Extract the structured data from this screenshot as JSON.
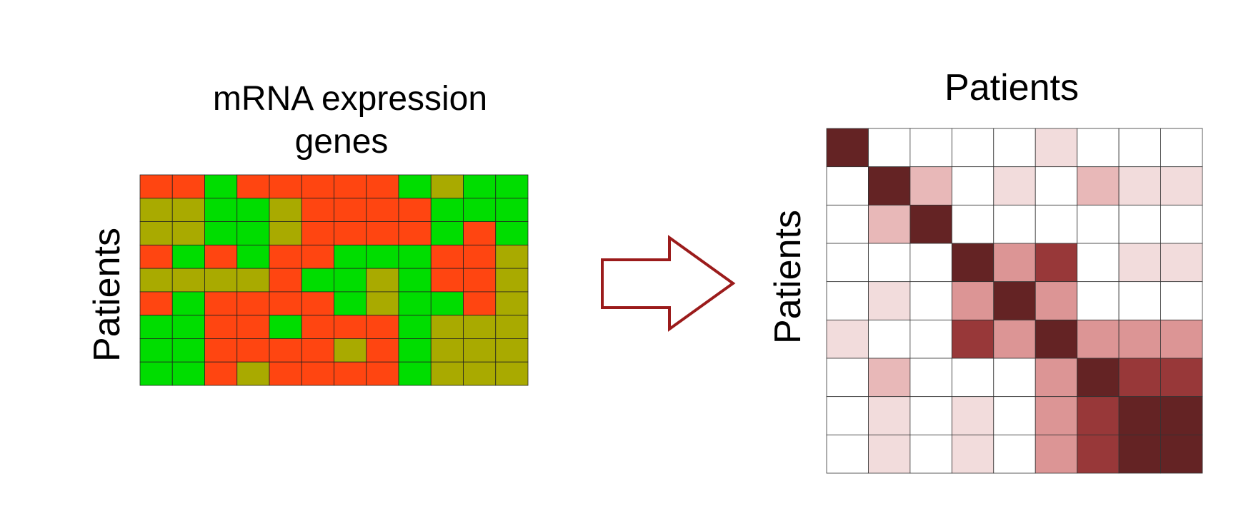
{
  "left_panel": {
    "title_line1": "mRNA expression",
    "title_line2": "genes",
    "row_label": "Patients",
    "legend_colors": {
      "r": "#ff4511",
      "g": "#00dd00",
      "o": "#a9aa00"
    },
    "matrix": [
      [
        "r",
        "r",
        "g",
        "r",
        "r",
        "r",
        "r",
        "r",
        "g",
        "o",
        "g",
        "g"
      ],
      [
        "o",
        "o",
        "g",
        "g",
        "o",
        "r",
        "r",
        "r",
        "r",
        "g",
        "g",
        "g"
      ],
      [
        "o",
        "o",
        "g",
        "g",
        "o",
        "r",
        "r",
        "r",
        "r",
        "g",
        "r",
        "g"
      ],
      [
        "r",
        "g",
        "r",
        "g",
        "r",
        "r",
        "g",
        "g",
        "g",
        "r",
        "r",
        "o"
      ],
      [
        "o",
        "o",
        "o",
        "o",
        "r",
        "g",
        "g",
        "o",
        "g",
        "r",
        "r",
        "o"
      ],
      [
        "r",
        "g",
        "r",
        "r",
        "r",
        "r",
        "g",
        "o",
        "g",
        "g",
        "r",
        "o"
      ],
      [
        "g",
        "g",
        "r",
        "r",
        "g",
        "r",
        "r",
        "r",
        "g",
        "o",
        "o",
        "o"
      ],
      [
        "g",
        "g",
        "r",
        "r",
        "r",
        "r",
        "o",
        "r",
        "g",
        "o",
        "o",
        "o"
      ],
      [
        "g",
        "g",
        "r",
        "o",
        "r",
        "r",
        "r",
        "r",
        "g",
        "o",
        "o",
        "o"
      ]
    ]
  },
  "arrow": {
    "color": "#9b1b1b"
  },
  "right_panel": {
    "title": "Patients",
    "row_label": "Patients",
    "level_colors": [
      "#ffffff",
      "#f2dcdc",
      "#e8b8b8",
      "#dc9595",
      "#983839",
      "#642324"
    ],
    "matrix": [
      [
        5,
        0,
        0,
        0,
        0,
        1,
        0,
        0,
        0
      ],
      [
        0,
        5,
        2,
        0,
        1,
        0,
        2,
        1,
        1
      ],
      [
        0,
        2,
        5,
        0,
        0,
        0,
        0,
        0,
        0
      ],
      [
        0,
        0,
        0,
        5,
        3,
        4,
        0,
        1,
        1
      ],
      [
        0,
        1,
        0,
        3,
        5,
        3,
        0,
        0,
        0
      ],
      [
        1,
        0,
        0,
        4,
        3,
        5,
        3,
        3,
        3
      ],
      [
        0,
        2,
        0,
        0,
        0,
        3,
        5,
        4,
        4
      ],
      [
        0,
        1,
        0,
        1,
        0,
        3,
        4,
        5,
        5
      ],
      [
        0,
        1,
        0,
        1,
        0,
        3,
        4,
        5,
        5
      ]
    ]
  }
}
